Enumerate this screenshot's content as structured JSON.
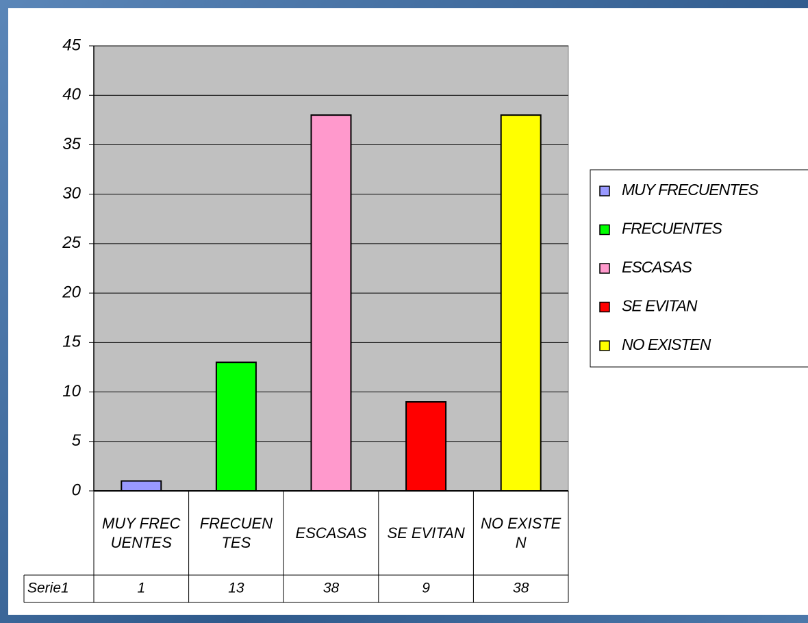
{
  "chart_data": {
    "type": "bar",
    "categories": [
      "MUY FRECUENTES",
      "FRECUENTES",
      "ESCASAS",
      "SE EVITAN",
      "NO EXISTEN"
    ],
    "series": [
      {
        "name": "Serie1",
        "values": [
          1,
          13,
          38,
          9,
          38
        ]
      }
    ],
    "colors": [
      "#9999ff",
      "#00ff00",
      "#ff99cc",
      "#ff0000",
      "#ffff00"
    ],
    "ylim": [
      0,
      45
    ],
    "yticks": [
      0,
      5,
      10,
      15,
      20,
      25,
      30,
      35,
      40,
      45
    ],
    "grid": true,
    "legend": "right",
    "data_table": true
  }
}
